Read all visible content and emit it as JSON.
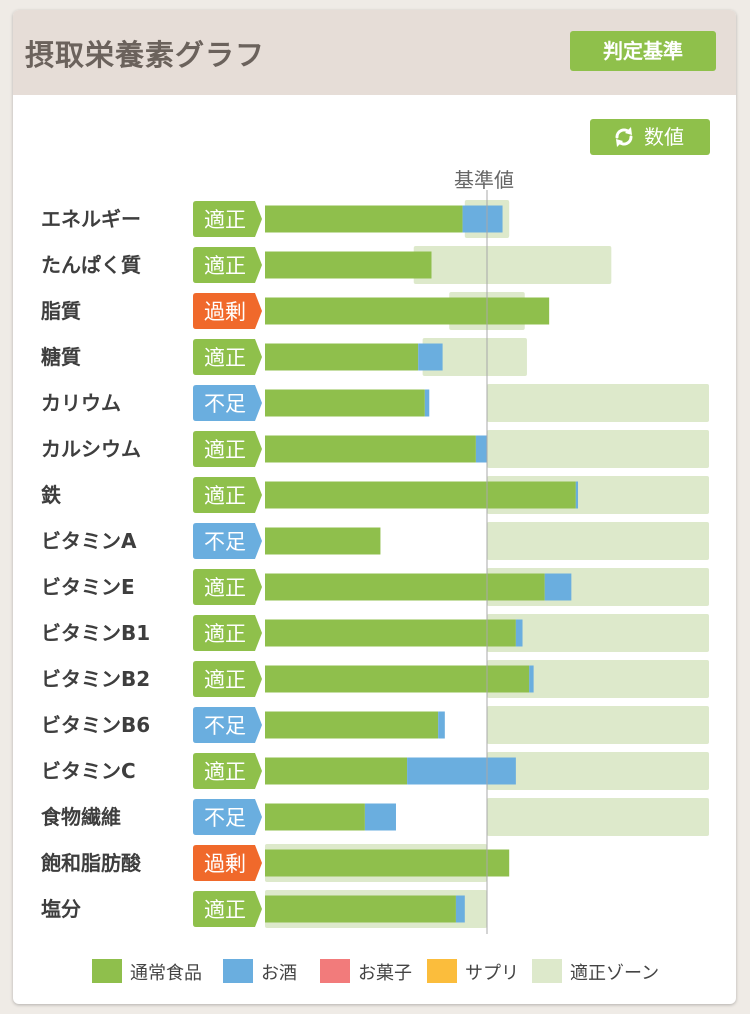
{
  "title": "摂取栄養素グラフ",
  "criteria_button": "判定基準",
  "values_button": {
    "label": "数値",
    "icon": "refresh-icon"
  },
  "colors": {
    "food": "#8fbf4c",
    "alcohol": "#6aaedf",
    "sweets": "#f27b7b",
    "supplement": "#fbbd3c",
    "zone": "#dde9cb",
    "status_ok": "#8fc04b",
    "status_low": "#6aaedf",
    "status_high": "#f0692b"
  },
  "chart_data": {
    "type": "bar",
    "orientation": "horizontal",
    "stacked": true,
    "baseline_label": "基準値",
    "note": "values are percent of 基準値 (baseline = 100); zone = 適正ゾーン range in percent",
    "categories": [
      "エネルギー",
      "たんぱく質",
      "脂質",
      "糖質",
      "カリウム",
      "カルシウム",
      "鉄",
      "ビタミンA",
      "ビタミンE",
      "ビタミンB1",
      "ビタミンB2",
      "ビタミンB6",
      "ビタミンC",
      "食物繊維",
      "飽和脂肪酸",
      "塩分"
    ],
    "status": [
      "適正",
      "適正",
      "過剰",
      "適正",
      "不足",
      "適正",
      "適正",
      "不足",
      "適正",
      "適正",
      "適正",
      "不足",
      "適正",
      "不足",
      "過剰",
      "適正"
    ],
    "series": [
      {
        "name": "通常食品",
        "key": "food",
        "values": [
          89,
          75,
          128,
          69,
          72,
          95,
          140,
          52,
          126,
          113,
          119,
          78,
          64,
          45,
          110,
          86
        ]
      },
      {
        "name": "お酒",
        "key": "alcohol",
        "values": [
          18,
          0,
          0,
          11,
          2,
          5,
          1,
          0,
          12,
          3,
          2,
          3,
          49,
          14,
          0,
          4
        ]
      },
      {
        "name": "お菓子",
        "key": "sweets",
        "values": [
          0,
          0,
          0,
          0,
          0,
          0,
          0,
          0,
          0,
          0,
          0,
          0,
          0,
          0,
          0,
          0
        ]
      },
      {
        "name": "サプリ",
        "key": "supplement",
        "values": [
          0,
          0,
          0,
          0,
          0,
          0,
          0,
          0,
          0,
          0,
          0,
          0,
          0,
          0,
          0,
          0
        ]
      }
    ],
    "zones": [
      [
        90,
        110
      ],
      [
        67,
        156
      ],
      [
        83,
        117
      ],
      [
        71,
        118
      ],
      [
        100,
        200
      ],
      [
        100,
        200
      ],
      [
        100,
        200
      ],
      [
        100,
        200
      ],
      [
        100,
        200
      ],
      [
        100,
        200
      ],
      [
        100,
        200
      ],
      [
        100,
        200
      ],
      [
        100,
        200
      ],
      [
        100,
        200
      ],
      [
        0,
        100
      ],
      [
        0,
        100
      ]
    ],
    "xlim": [
      0,
      200
    ],
    "legend": [
      "通常食品",
      "お酒",
      "お菓子",
      "サプリ",
      "適正ゾーン"
    ],
    "legend_position": "bottom"
  }
}
